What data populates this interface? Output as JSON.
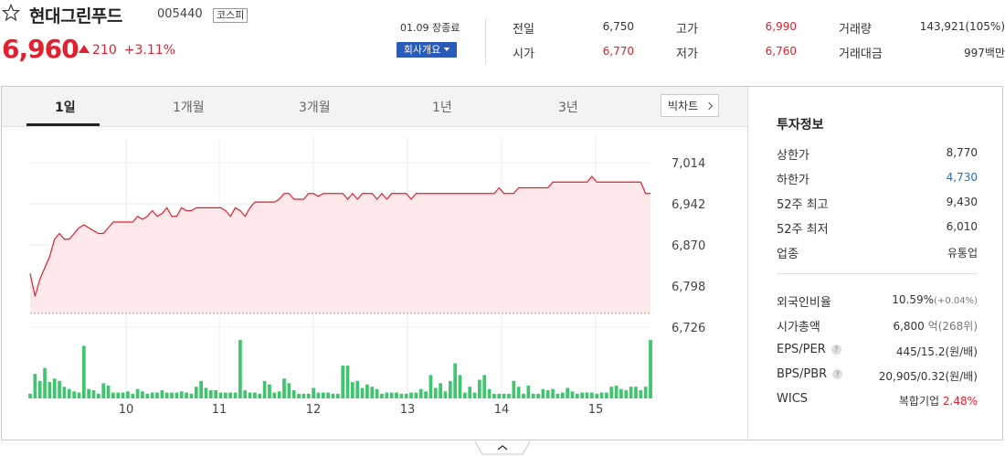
{
  "header": {
    "stock_name": "현대그린푸드",
    "code": "005440",
    "market": "코스피",
    "price": "6,960",
    "change": "210",
    "change_pct": "+3.11%",
    "date_status": "01.09 장종료",
    "company_button": "회사개요"
  },
  "quote": {
    "prev_close_label": "전일",
    "prev_close": "6,750",
    "open_label": "시가",
    "open": "6,770",
    "high_label": "고가",
    "high": "6,990",
    "low_label": "저가",
    "low": "6,760",
    "volume_label": "거래량",
    "volume": "143,921(105%)",
    "amount_label": "거래대금",
    "amount": "997백만"
  },
  "tabs": [
    "1일",
    "1개월",
    "3개월",
    "1년",
    "3년"
  ],
  "big_chart_button": "빅차트",
  "invest": {
    "title": "투자정보",
    "upper_label": "상한가",
    "upper": "8,770",
    "lower_label": "하한가",
    "lower": "4,730",
    "high52_label": "52주 최고",
    "high52": "9,430",
    "low52_label": "52주 최저",
    "low52": "6,010",
    "industry_label": "업종",
    "industry": "유통업",
    "foreign_label": "외국인비율",
    "foreign": "10.59%",
    "foreign_chg": "(+0.04%)",
    "mcap_label": "시가총액",
    "mcap": "6,800",
    "mcap_unit": "억",
    "mcap_rank": "(268위)",
    "eps_label": "EPS/PER",
    "eps": "445/15.2",
    "eps_unit": "(원/배)",
    "bps_label": "BPS/PBR",
    "bps": "20,905/0.32",
    "bps_unit": "(원/배)",
    "wics_label": "WICS",
    "wics": "복합기업",
    "wics_pct": "2.48%"
  },
  "colors": {
    "up": "#e2202f",
    "down": "#2b6cc4",
    "volume": "#3ec66e",
    "area": "#fde8ea"
  },
  "chart_data": {
    "type": "line",
    "x_ticks": [
      "10",
      "11",
      "12",
      "13",
      "14",
      "15"
    ],
    "y_ticks": [
      7014,
      6942,
      6870,
      6798,
      6726
    ],
    "ylim": [
      6726,
      7014
    ],
    "prev_close": 6750,
    "series": [
      {
        "values": [
          6820,
          6780,
          6810,
          6830,
          6850,
          6880,
          6890,
          6880,
          6880,
          6890,
          6900,
          6905,
          6900,
          6895,
          6890,
          6890,
          6900,
          6910,
          6910,
          6910,
          6910,
          6910,
          6920,
          6915,
          6920,
          6930,
          6920,
          6925,
          6935,
          6920,
          6920,
          6935,
          6930,
          6930,
          6935,
          6935,
          6935,
          6935,
          6935,
          6935,
          6930,
          6920,
          6935,
          6930,
          6920,
          6935,
          6945,
          6945,
          6945,
          6945,
          6945,
          6950,
          6960,
          6960,
          6950,
          6950,
          6950,
          6960,
          6960,
          6955,
          6960,
          6960,
          6960,
          6960,
          6960,
          6950,
          6960,
          6950,
          6960,
          6960,
          6960,
          6950,
          6960,
          6950,
          6960,
          6960,
          6960,
          6960,
          6950,
          6960,
          6960,
          6960,
          6960,
          6960,
          6960,
          6960,
          6960,
          6960,
          6960,
          6960,
          6960,
          6960,
          6960,
          6960,
          6960,
          6960,
          6970,
          6960,
          6960,
          6960,
          6970,
          6970,
          6970,
          6970,
          6970,
          6970,
          6970,
          6980,
          6980,
          6980,
          6980,
          6980,
          6980,
          6980,
          6980,
          6990,
          6980,
          6980,
          6980,
          6980,
          6980,
          6980,
          6980,
          6980,
          6980,
          6980,
          6960,
          6960
        ],
        "volumes": [
          8,
          42,
          30,
          52,
          28,
          34,
          30,
          20,
          16,
          12,
          10,
          90,
          16,
          14,
          8,
          26,
          22,
          10,
          10,
          10,
          12,
          8,
          16,
          12,
          8,
          10,
          10,
          14,
          10,
          10,
          10,
          12,
          10,
          8,
          20,
          30,
          18,
          14,
          14,
          10,
          10,
          10,
          10,
          100,
          14,
          10,
          10,
          8,
          30,
          24,
          10,
          12,
          34,
          26,
          14,
          8,
          8,
          8,
          18,
          10,
          10,
          10,
          8,
          8,
          56,
          56,
          28,
          30,
          18,
          24,
          20,
          16,
          8,
          10,
          10,
          10,
          8,
          8,
          10,
          10,
          16,
          12,
          40,
          18,
          26,
          12,
          30,
          60,
          40,
          10,
          20,
          10,
          32,
          40,
          16,
          8,
          8,
          8,
          8,
          30,
          20,
          8,
          22,
          8,
          8,
          16,
          14,
          16,
          8,
          10,
          18,
          12,
          8,
          10,
          10,
          10,
          8,
          10,
          10,
          20,
          22,
          16,
          14,
          20,
          20,
          14,
          20,
          100
        ]
      }
    ]
  }
}
